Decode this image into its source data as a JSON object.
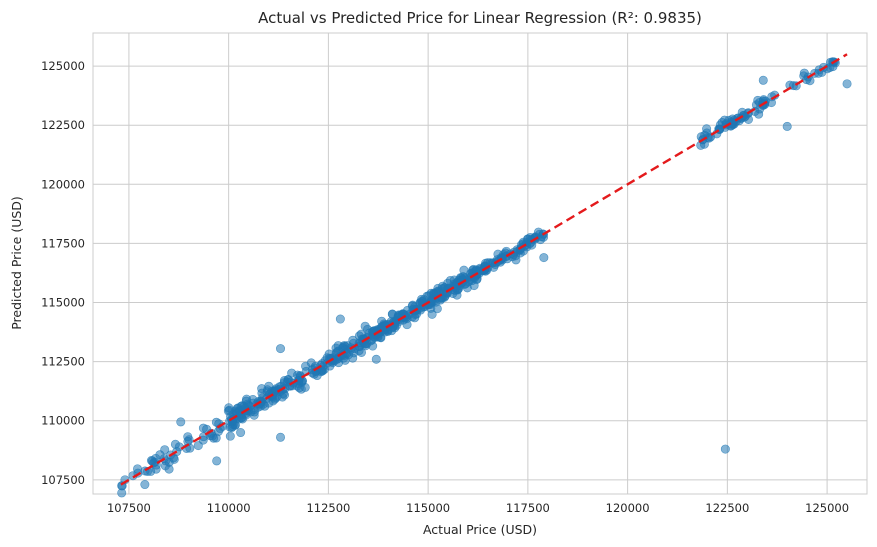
{
  "chart_data": {
    "type": "scatter",
    "title": "Actual vs Predicted Price for Linear Regression (R²: 0.9835)",
    "xlabel": "Actual Price (USD)",
    "ylabel": "Predicted Price (USD)",
    "xlim": [
      106600,
      126000
    ],
    "ylim": [
      106900,
      126400
    ],
    "xticks": [
      107500,
      110000,
      112500,
      115000,
      117500,
      120000,
      122500,
      125000
    ],
    "xtick_labels": [
      "107500",
      "110000",
      "112500",
      "115000",
      "117500",
      "120000",
      "122500",
      "125000"
    ],
    "yticks": [
      107500,
      110000,
      112500,
      115000,
      117500,
      120000,
      122500,
      125000
    ],
    "ytick_labels": [
      "107500",
      "110000",
      "112500",
      "115000",
      "117500",
      "120000",
      "122500",
      "125000"
    ],
    "grid": true,
    "point_color": "#1f77b4",
    "point_alpha": 0.55,
    "reference_line": {
      "x": [
        107300,
        125500
      ],
      "y": [
        107300,
        125500
      ],
      "color": "#e41a1c",
      "style": "dashed"
    },
    "clusters": [
      {
        "x_range": [
          107300,
          110800
        ],
        "count": 70,
        "spread": 230
      },
      {
        "x_range": [
          110000,
          113700
        ],
        "count": 200,
        "spread": 200
      },
      {
        "x_range": [
          113600,
          116300
        ],
        "count": 200,
        "spread": 170
      },
      {
        "x_range": [
          116200,
          117900
        ],
        "count": 80,
        "spread": 140
      },
      {
        "x_range": [
          121800,
          123500
        ],
        "count": 60,
        "spread": 120
      },
      {
        "x_range": [
          123400,
          125400
        ],
        "count": 25,
        "spread": 110
      }
    ],
    "points_outliers": [
      {
        "x": 112800,
        "y": 114300
      },
      {
        "x": 111300,
        "y": 113050
      },
      {
        "x": 111300,
        "y": 109300
      },
      {
        "x": 110300,
        "y": 109500
      },
      {
        "x": 108800,
        "y": 109950
      },
      {
        "x": 109700,
        "y": 108300
      },
      {
        "x": 107900,
        "y": 107300
      },
      {
        "x": 107400,
        "y": 107500
      },
      {
        "x": 113700,
        "y": 112600
      },
      {
        "x": 117900,
        "y": 116900
      },
      {
        "x": 122450,
        "y": 108800
      },
      {
        "x": 124000,
        "y": 122450
      },
      {
        "x": 125500,
        "y": 124250
      },
      {
        "x": 123400,
        "y": 124400
      },
      {
        "x": 115100,
        "y": 114500
      }
    ]
  }
}
